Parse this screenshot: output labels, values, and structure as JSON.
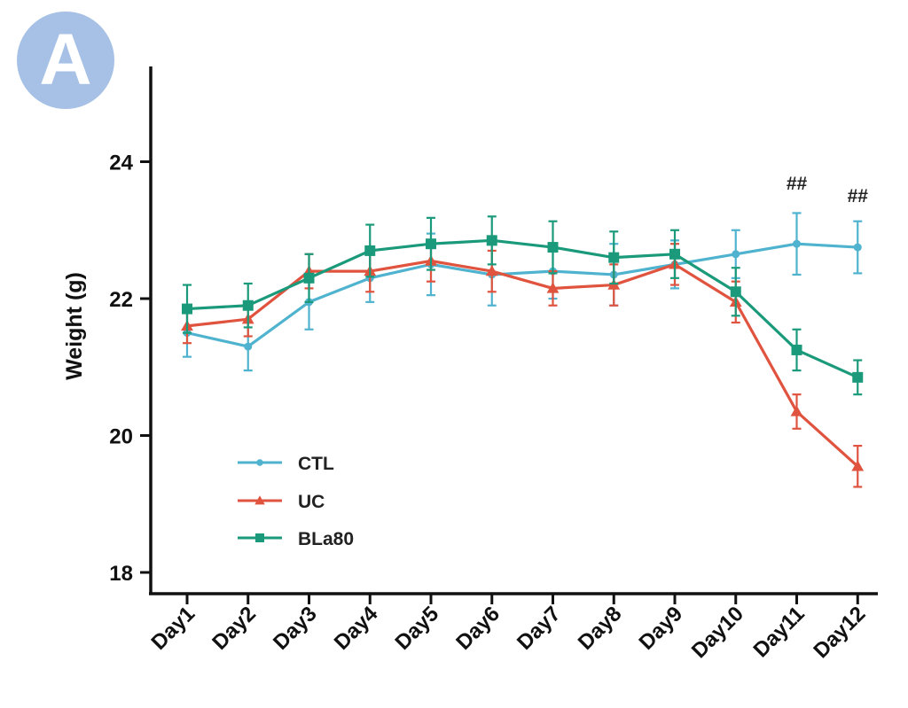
{
  "panel_label": "A",
  "chart_data": {
    "type": "line",
    "title": "",
    "xlabel": "",
    "ylabel": "Weight (g)",
    "ylim": [
      18,
      25.5
    ],
    "yticks": [
      18,
      20,
      22,
      24
    ],
    "grid": false,
    "legend_position": "bottom-left",
    "categories": [
      "Day1",
      "Day2",
      "Day3",
      "Day4",
      "Day5",
      "Day6",
      "Day7",
      "Day8",
      "Day9",
      "Day10",
      "Day11",
      "Day12"
    ],
    "series": [
      {
        "name": "CTL",
        "color": "#4fb3cf",
        "marker": "circle",
        "values": [
          21.5,
          21.3,
          21.95,
          22.3,
          22.5,
          22.35,
          22.4,
          22.35,
          22.5,
          22.65,
          22.8,
          22.75
        ],
        "errors": [
          0.35,
          0.35,
          0.4,
          0.35,
          0.45,
          0.45,
          0.4,
          0.45,
          0.35,
          0.35,
          0.45,
          0.38
        ]
      },
      {
        "name": "UC",
        "color": "#e0533e",
        "marker": "triangle",
        "values": [
          21.6,
          21.7,
          22.4,
          22.4,
          22.55,
          22.4,
          22.15,
          22.2,
          22.5,
          21.95,
          20.35,
          19.55
        ],
        "errors": [
          0.25,
          0.25,
          0.25,
          0.3,
          0.3,
          0.3,
          0.25,
          0.3,
          0.3,
          0.3,
          0.25,
          0.3
        ]
      },
      {
        "name": "BLa80",
        "color": "#1a9a7a",
        "marker": "square",
        "values": [
          21.85,
          21.9,
          22.3,
          22.7,
          22.8,
          22.85,
          22.75,
          22.6,
          22.65,
          22.1,
          21.25,
          20.85
        ],
        "errors": [
          0.35,
          0.32,
          0.35,
          0.38,
          0.38,
          0.35,
          0.38,
          0.38,
          0.35,
          0.35,
          0.3,
          0.25
        ]
      }
    ],
    "annotations": [
      {
        "category": "Day11",
        "text": "##"
      },
      {
        "category": "Day12",
        "text": "##"
      }
    ]
  }
}
